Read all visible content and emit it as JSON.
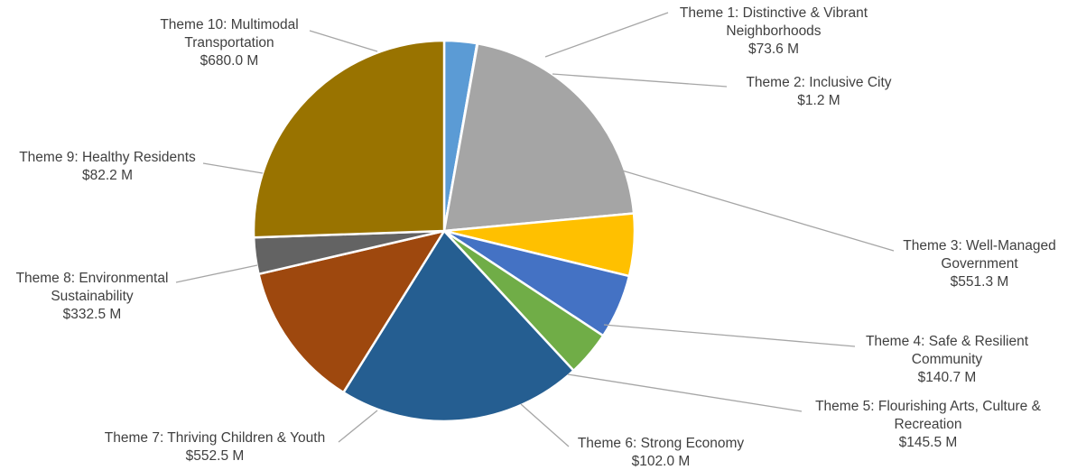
{
  "chart_data": {
    "type": "pie",
    "title": "",
    "unit_prefix": "$",
    "unit_suffix": " M",
    "slices": [
      {
        "label": "Theme 1: Distinctive & Vibrant Neighborhoods",
        "label_lines": [
          "Theme 1: Distinctive & Vibrant",
          "Neighborhoods"
        ],
        "value": 73.6,
        "value_text": "$73.6 M",
        "color": "#5b9bd5"
      },
      {
        "label": "Theme 2: Inclusive City",
        "label_lines": [
          "Theme 2: Inclusive City"
        ],
        "value": 1.2,
        "value_text": "$1.2 M",
        "color": "#ed7d31"
      },
      {
        "label": "Theme 3: Well-Managed Government",
        "label_lines": [
          "Theme 3: Well-Managed",
          "Government"
        ],
        "value": 551.3,
        "value_text": "$551.3 M",
        "color": "#a5a5a5"
      },
      {
        "label": "Theme 4: Safe & Resilient Community",
        "label_lines": [
          "Theme 4: Safe & Resilient",
          "Community"
        ],
        "value": 140.7,
        "value_text": "$140.7 M",
        "color": "#ffc000"
      },
      {
        "label": "Theme 5: Flourishing Arts, Culture & Recreation",
        "label_lines": [
          "Theme 5: Flourishing Arts, Culture &",
          "Recreation"
        ],
        "value": 145.5,
        "value_text": "$145.5 M",
        "color": "#4472c4"
      },
      {
        "label": "Theme 6: Strong Economy",
        "label_lines": [
          "Theme 6: Strong Economy"
        ],
        "value": 102.0,
        "value_text": "$102.0 M",
        "color": "#70ad47"
      },
      {
        "label": "Theme 7: Thriving Children & Youth",
        "label_lines": [
          "Theme 7: Thriving Children & Youth"
        ],
        "value": 552.5,
        "value_text": "$552.5 M",
        "color": "#255e91"
      },
      {
        "label": "Theme 8: Environmental Sustainability",
        "label_lines": [
          "Theme 8: Environmental",
          "Sustainability"
        ],
        "value": 332.5,
        "value_text": "$332.5 M",
        "color": "#9e480e"
      },
      {
        "label": "Theme 9: Healthy Residents",
        "label_lines": [
          "Theme 9: Healthy Residents"
        ],
        "value": 82.2,
        "value_text": "$82.2 M",
        "color": "#636363"
      },
      {
        "label": "Theme 10: Multimodal Transportation",
        "label_lines": [
          "Theme 10: Multimodal",
          "Transportation"
        ],
        "value": 680.0,
        "value_text": "$680.0 M",
        "color": "#997300"
      }
    ],
    "start_direction": "top",
    "direction": "clockwise",
    "data_labels": "outside-with-leader-lines",
    "legend": "none"
  }
}
